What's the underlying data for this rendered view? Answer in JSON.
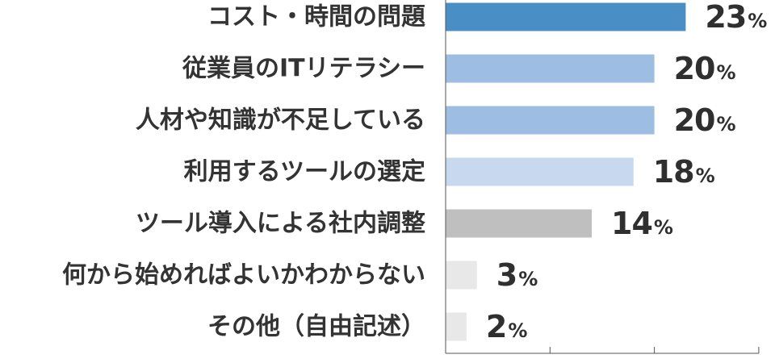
{
  "chart_data": {
    "type": "bar",
    "orientation": "horizontal",
    "categories": [
      "コスト・時間の問題",
      "従業員のITリテラシー",
      "人材や知識が不足している",
      "利用するツールの選定",
      "ツール導入による社内調整",
      "何から始めればよいかわからない",
      "その他（自由記述）"
    ],
    "values": [
      23,
      20,
      20,
      18,
      14,
      3,
      2
    ],
    "value_unit": "%",
    "xlim": [
      0,
      30
    ],
    "x_ticks": [
      0,
      10,
      20,
      30
    ],
    "grid": false,
    "bar_colors": [
      "#4a8ec6",
      "#9dbde3",
      "#9dbde3",
      "#c8d8ee",
      "#bfbfbf",
      "#e8e8e8",
      "#e8e8e8"
    ]
  }
}
